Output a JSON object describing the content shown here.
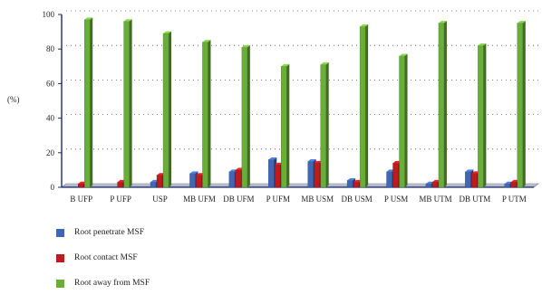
{
  "chart_data": {
    "type": "bar",
    "ylabel": "(%)",
    "ylim": [
      0,
      100
    ],
    "yticks": [
      0,
      20,
      40,
      60,
      80,
      100
    ],
    "grid": true,
    "legend_position": "bottom-left",
    "categories": [
      "B UFP",
      "P UFP",
      "USP",
      "MB UFM",
      "DB UFM",
      "P UFM",
      "MB USM",
      "DB USM",
      "P USM",
      "MB UTM",
      "DB UTM",
      "P UTM"
    ],
    "series": [
      {
        "name": "Root penetrate MSF",
        "color": "#3f67b5",
        "values": [
          0,
          0,
          3,
          8,
          9,
          16,
          15,
          4,
          9,
          2,
          9,
          2
        ]
      },
      {
        "name": "Root contact MSF",
        "color": "#c0191f",
        "values": [
          2,
          3,
          7,
          7,
          10,
          13,
          14,
          3,
          14,
          3,
          8,
          3
        ]
      },
      {
        "name": "Root away from MSF",
        "color": "#6aae3a",
        "values": [
          97,
          96,
          89,
          84,
          81,
          70,
          71,
          93,
          76,
          95,
          82,
          95
        ]
      }
    ]
  }
}
